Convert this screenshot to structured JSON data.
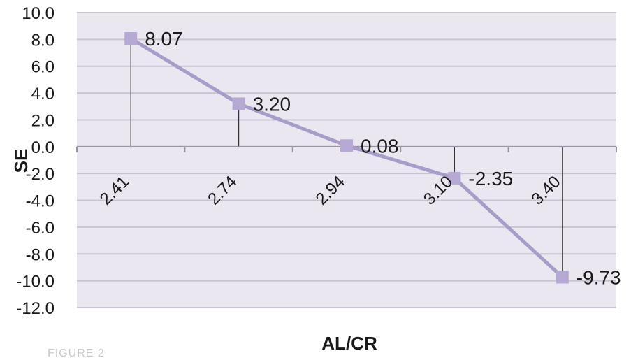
{
  "chart_data": {
    "type": "line",
    "categories": [
      "2.41",
      "2.74",
      "2.94",
      "3.10",
      "3.40"
    ],
    "series": [
      {
        "values": [
          8.07,
          3.2,
          0.08,
          -2.35,
          -9.73
        ],
        "labels": [
          "8.07",
          "3.20",
          "0.08",
          "-2.35",
          "-9.73"
        ]
      }
    ],
    "yticks": [
      "10.0",
      "8.0",
      "6.0",
      "4.0",
      "2.0",
      "0.0",
      "-2.0",
      "-4.0",
      "-6.0",
      "-8.0",
      "-10.0",
      "-12.0"
    ],
    "ylim": [
      -12,
      10
    ],
    "xlabel": "AL/CR",
    "ylabel": "SE",
    "grid": true,
    "drop_lines": true,
    "colors": {
      "plot_bg": "#ebe7f0",
      "line": "#a89cc8",
      "marker": "#b6a9d3",
      "grid": "#c9c3d2",
      "drop": "#333333"
    }
  },
  "footer": "FIGURE 2"
}
